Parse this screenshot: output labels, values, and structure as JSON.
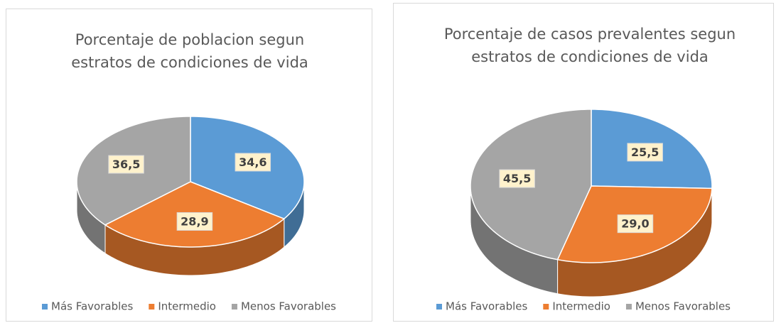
{
  "chart_data": [
    {
      "type": "pie",
      "title": "Porcentaje de poblacion segun estratos de condiciones de vida",
      "categories": [
        "Más Favorables",
        "Intermedio",
        "Menos Favorables"
      ],
      "values": [
        34.6,
        28.9,
        36.5
      ],
      "value_labels": [
        "34,6",
        "28,9",
        "36,5"
      ],
      "colors": [
        "#5b9bd5",
        "#ed7d31",
        "#a5a5a5"
      ]
    },
    {
      "type": "pie",
      "title": "Porcentaje de casos prevalentes segun estratos de condiciones de vida",
      "categories": [
        "Más Favorables",
        "Intermedio",
        "Menos Favorables"
      ],
      "values": [
        25.5,
        29.0,
        45.5
      ],
      "value_labels": [
        "25,5",
        "29,0",
        "45,5"
      ],
      "colors": [
        "#5b9bd5",
        "#ed7d31",
        "#a5a5a5"
      ]
    }
  ]
}
